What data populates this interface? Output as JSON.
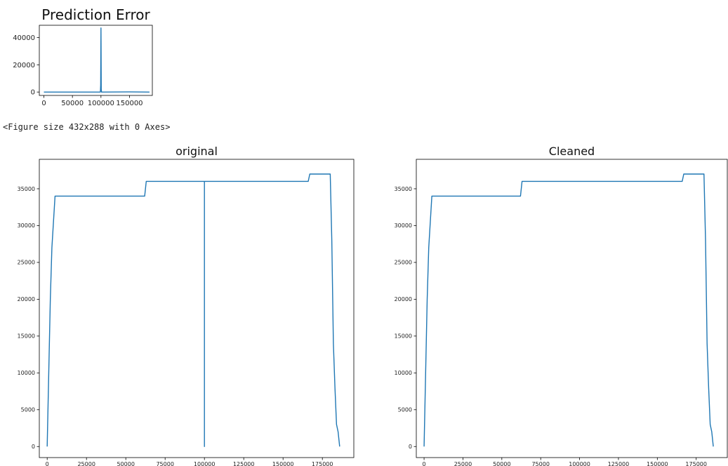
{
  "output_text": "<Figure size 432x288 with 0 Axes>",
  "chart_data": [
    {
      "id": "error",
      "type": "line",
      "title": "Prediction Error",
      "xlabel": "",
      "ylabel": "",
      "xlim": [
        -8000,
        190000
      ],
      "ylim": [
        -2500,
        49000
      ],
      "xticks": [
        0,
        50000,
        100000,
        150000
      ],
      "yticks": [
        0,
        20000,
        40000
      ],
      "color": "#1f77b4",
      "series": [
        {
          "x": [
            0,
            99000,
            99500,
            100000,
            100500,
            101000,
            150000,
            185000
          ],
          "y": [
            0,
            0,
            5000,
            47000,
            2000,
            0,
            100,
            0
          ]
        }
      ]
    },
    {
      "id": "original",
      "type": "line",
      "title": "original",
      "xlabel": "",
      "ylabel": "",
      "xlim": [
        -5000,
        195000
      ],
      "ylim": [
        -1500,
        39000
      ],
      "xticks": [
        0,
        25000,
        50000,
        75000,
        100000,
        125000,
        150000,
        175000
      ],
      "yticks": [
        0,
        5000,
        10000,
        15000,
        20000,
        25000,
        30000,
        35000
      ],
      "color": "#1f77b4",
      "series": [
        {
          "x": [
            0,
            1000,
            2000,
            3000,
            5000,
            62000,
            63000,
            100000,
            100000,
            100000,
            166000,
            167000,
            180000,
            181000,
            182000,
            183000,
            184000,
            185000,
            186000
          ],
          "y": [
            0,
            10000,
            20000,
            27000,
            34000,
            34000,
            36000,
            36000,
            0,
            36000,
            36000,
            37000,
            37000,
            28000,
            14000,
            8000,
            3000,
            2000,
            0
          ]
        }
      ]
    },
    {
      "id": "cleaned",
      "type": "line",
      "title": "Cleaned",
      "xlabel": "",
      "ylabel": "",
      "xlim": [
        -5000,
        195000
      ],
      "ylim": [
        -1500,
        39000
      ],
      "xticks": [
        0,
        25000,
        50000,
        75000,
        100000,
        125000,
        150000,
        175000
      ],
      "yticks": [
        0,
        5000,
        10000,
        15000,
        20000,
        25000,
        30000,
        35000
      ],
      "color": "#1f77b4",
      "series": [
        {
          "x": [
            0,
            1000,
            2000,
            3000,
            5000,
            62000,
            63000,
            166000,
            167000,
            180000,
            181000,
            182000,
            183000,
            184000,
            185000,
            186000
          ],
          "y": [
            0,
            10000,
            20000,
            27000,
            34000,
            34000,
            36000,
            36000,
            37000,
            37000,
            28000,
            14000,
            8000,
            3000,
            2000,
            0
          ]
        }
      ]
    }
  ]
}
